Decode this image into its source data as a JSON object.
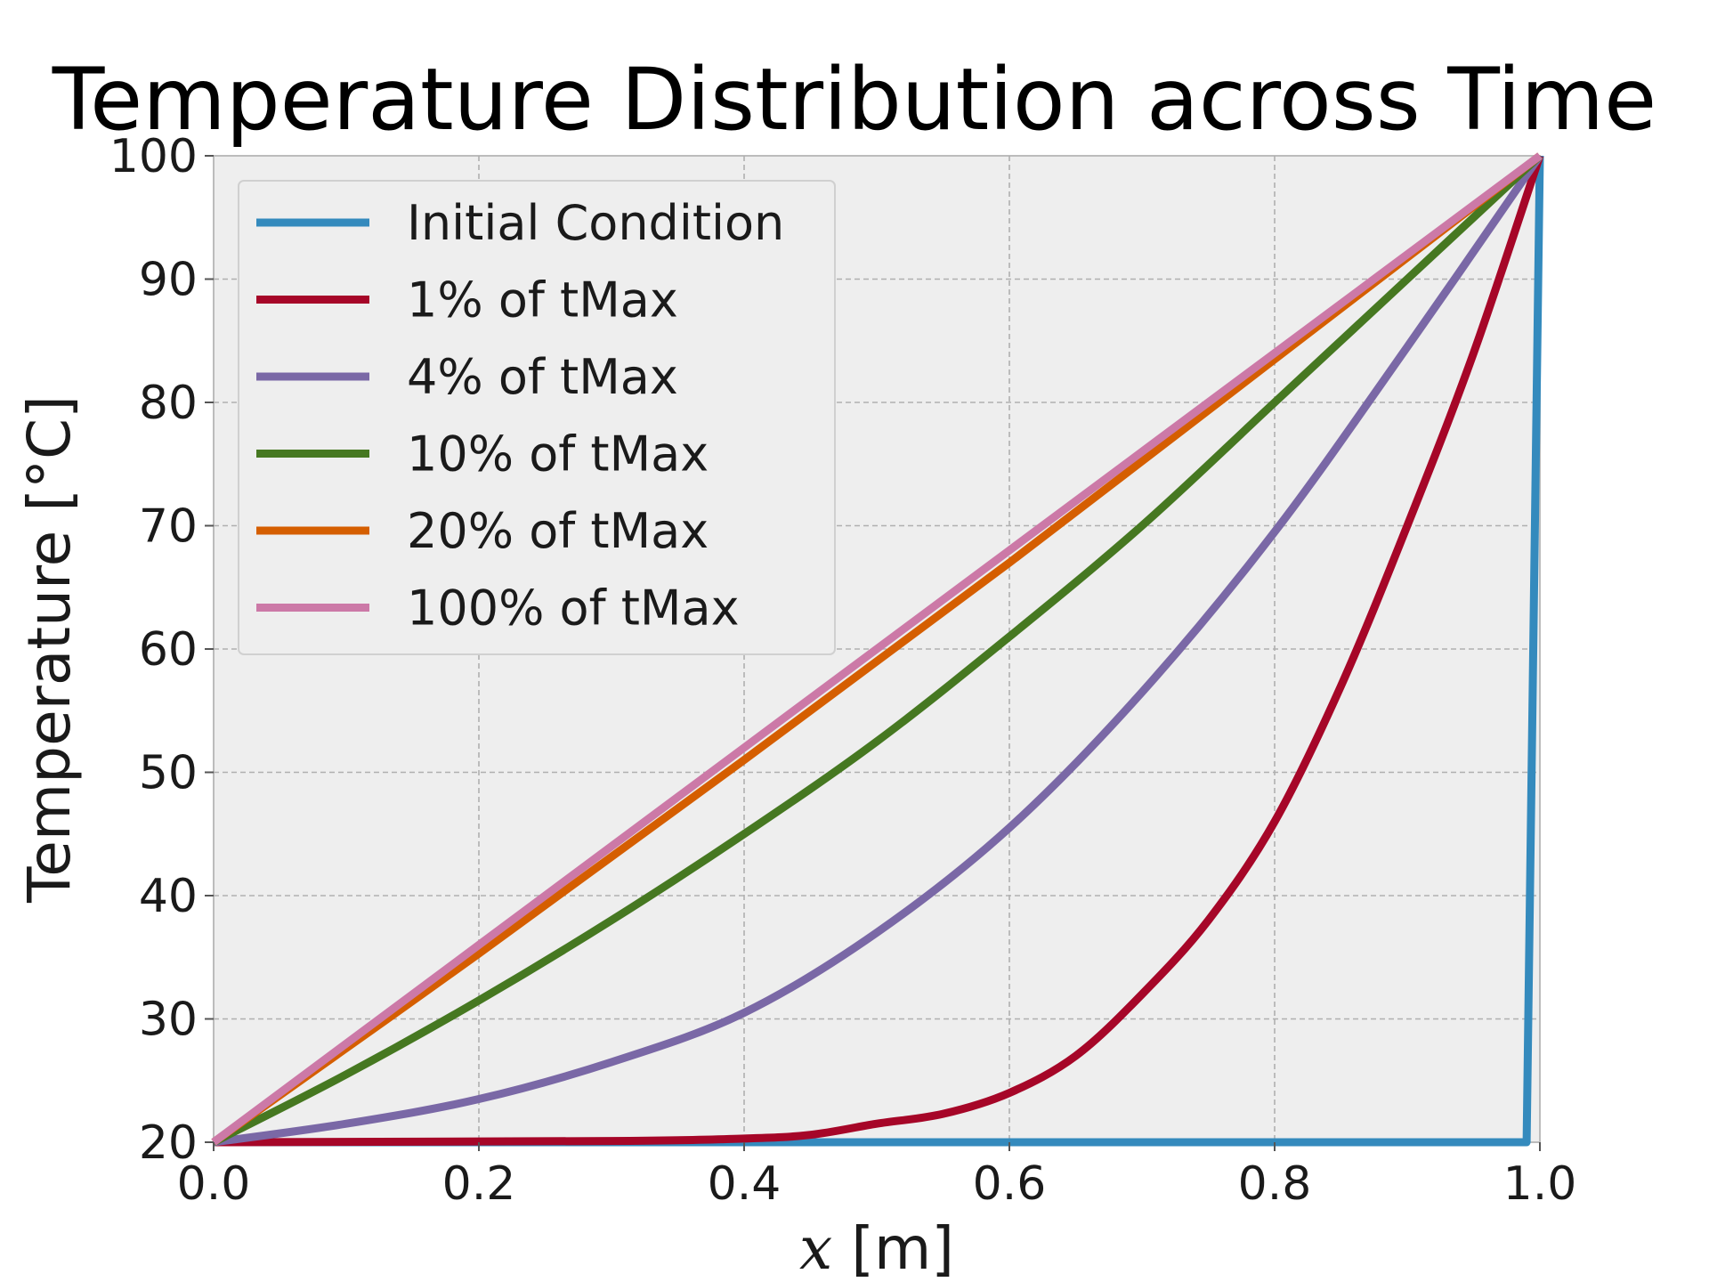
{
  "chart_data": {
    "type": "line",
    "title": "Temperature Distribution across Time",
    "xlabel_var": "x",
    "xlabel_unit": "[m]",
    "ylabel": "Temperature [°C]",
    "xlim": [
      0.0,
      1.0
    ],
    "ylim": [
      20,
      100
    ],
    "xticks": [
      "0.0",
      "0.2",
      "0.4",
      "0.6",
      "0.8",
      "1.0"
    ],
    "yticks": [
      "20",
      "30",
      "40",
      "50",
      "60",
      "70",
      "80",
      "90",
      "100"
    ],
    "grid": true,
    "legend_position": "top-left",
    "series": [
      {
        "name": "Initial Condition",
        "color": "#348abd",
        "x": [
          0.0,
          0.99,
          1.0
        ],
        "y": [
          20,
          20,
          100
        ]
      },
      {
        "name": "1% of tMax",
        "color": "#a60628",
        "x": [
          0.0,
          0.3,
          0.4,
          0.45,
          0.5,
          0.55,
          0.6,
          0.65,
          0.7,
          0.75,
          0.8,
          0.85,
          0.9,
          0.95,
          1.0
        ],
        "y": [
          20,
          20.1,
          20.3,
          20.6,
          21.5,
          22.3,
          24,
          27,
          32,
          38,
          46,
          57,
          70,
          84,
          100
        ]
      },
      {
        "name": "4% of tMax",
        "color": "#7a68a6",
        "x": [
          0.0,
          0.1,
          0.2,
          0.3,
          0.4,
          0.5,
          0.6,
          0.7,
          0.8,
          0.9,
          1.0
        ],
        "y": [
          20,
          21.5,
          23.5,
          26.5,
          30.5,
          37,
          45.5,
          56.5,
          69.5,
          84.5,
          100
        ]
      },
      {
        "name": "10% of tMax",
        "color": "#467821",
        "x": [
          0.0,
          0.1,
          0.2,
          0.3,
          0.4,
          0.5,
          0.6,
          0.7,
          0.8,
          0.9,
          1.0
        ],
        "y": [
          20,
          25.5,
          31.5,
          38,
          45,
          52.5,
          61,
          70,
          80,
          90,
          100
        ]
      },
      {
        "name": "20% of tMax",
        "color": "#d55e00",
        "x": [
          0.0,
          0.2,
          0.4,
          0.6,
          0.8,
          1.0
        ],
        "y": [
          20,
          35.3,
          51,
          67,
          83.5,
          100
        ]
      },
      {
        "name": "100% of tMax",
        "color": "#cc79a7",
        "x": [
          0.0,
          0.2,
          0.4,
          0.6,
          0.8,
          1.0
        ],
        "y": [
          20,
          36,
          52,
          68,
          84,
          100
        ]
      }
    ]
  }
}
